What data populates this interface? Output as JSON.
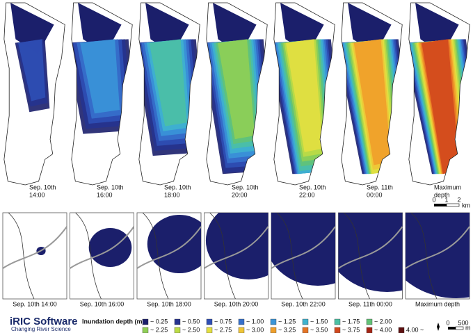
{
  "top_panels": [
    {
      "line1": "Sep. 10th",
      "line2": "14:00"
    },
    {
      "line1": "Sep. 10th",
      "line2": "16:00"
    },
    {
      "line1": "Sep. 10th",
      "line2": "18:00"
    },
    {
      "line1": "Sep. 10th",
      "line2": "20:00"
    },
    {
      "line1": "Sep. 10th",
      "line2": "22:00"
    },
    {
      "line1": "Sep. 11th",
      "line2": "00:00"
    },
    {
      "line1": "Maximum",
      "line2": "depth"
    }
  ],
  "top_scale": {
    "labels": [
      "0",
      "1",
      "2"
    ],
    "unit": "km"
  },
  "bottom_panels": [
    "Sep. 10th 14:00",
    "Sep. 10th 16:00",
    "Sep. 10th 18:00",
    "Sep. 10th 20:00",
    "Sep. 10th 22:00",
    "Sep. 11th 00:00",
    "Maximum depth"
  ],
  "logo": {
    "title": "iRIC Software",
    "subtitle": "Changing River Science"
  },
  "legend": {
    "title": "Inundation depth (m):",
    "items": [
      {
        "label": "~ 0.25",
        "color": "#1b1f6b"
      },
      {
        "label": "~ 0.50",
        "color": "#26338f"
      },
      {
        "label": "~ 0.75",
        "color": "#2f4fb5"
      },
      {
        "label": "~ 1.00",
        "color": "#3670cc"
      },
      {
        "label": "~ 1.25",
        "color": "#3a95d8"
      },
      {
        "label": "~ 1.50",
        "color": "#3fb3cf"
      },
      {
        "label": "~ 1.75",
        "color": "#4bc0a4"
      },
      {
        "label": "~ 2.00",
        "color": "#62c277"
      },
      {
        "label": "~ 2.25",
        "color": "#8fcf55"
      },
      {
        "label": "~ 2.50",
        "color": "#bcdc45"
      },
      {
        "label": "~ 2.75",
        "color": "#e3df40"
      },
      {
        "label": "~ 3.00",
        "color": "#f0c536"
      },
      {
        "label": "~ 3.25",
        "color": "#ef9f2a"
      },
      {
        "label": "~ 3.50",
        "color": "#e57424"
      },
      {
        "label": "~ 3.75",
        "color": "#d2481d"
      },
      {
        "label": "~ 4.00",
        "color": "#a42414"
      },
      {
        "label": "4.00 ~",
        "color": "#5e1010"
      }
    ]
  },
  "bottom_scale": {
    "labels": [
      "0",
      "500"
    ],
    "unit": "m"
  }
}
